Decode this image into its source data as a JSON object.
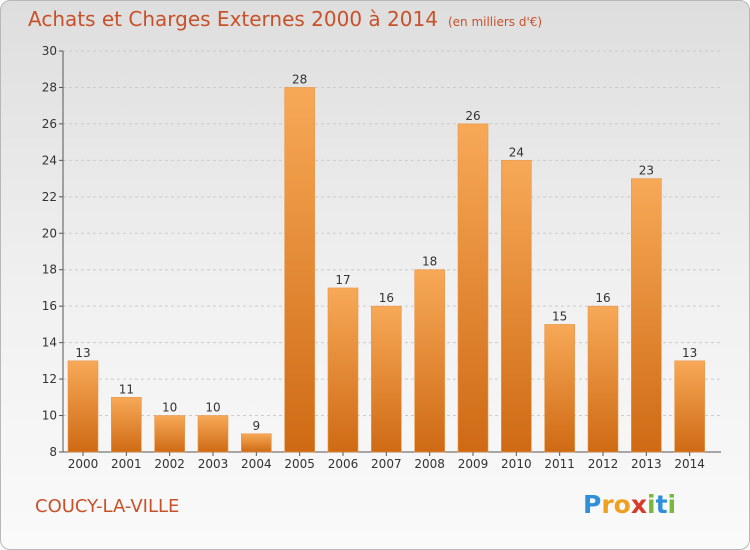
{
  "title": {
    "main": "Achats et Charges Externes 2000 à 2014",
    "unit": "(en milliers d'€)"
  },
  "location": "COUCY-LA-VILLE",
  "logo": {
    "text": "Proxiti",
    "letters": [
      {
        "ch": "P",
        "color": "#2f8fd8"
      },
      {
        "ch": "r",
        "color": "#f0a020"
      },
      {
        "ch": "o",
        "color": "#f0a020"
      },
      {
        "ch": "x",
        "color": "#d83a2a"
      },
      {
        "ch": "i",
        "color": "#7ab83a"
      },
      {
        "ch": "t",
        "color": "#2f8fd8"
      },
      {
        "ch": "i",
        "color": "#7ab83a"
      }
    ]
  },
  "colors": {
    "title": "#c8512a",
    "bar_light": "#f7a957",
    "bar_dark": "#cf6a14",
    "axis_text": "#333333",
    "grid": "#cccccc"
  },
  "chart_data": {
    "type": "bar",
    "categories": [
      "2000",
      "2001",
      "2002",
      "2003",
      "2004",
      "2005",
      "2006",
      "2007",
      "2008",
      "2009",
      "2010",
      "2011",
      "2012",
      "2013",
      "2014"
    ],
    "values": [
      13,
      11,
      10,
      10,
      9,
      28,
      17,
      16,
      18,
      26,
      24,
      15,
      16,
      23,
      13
    ],
    "ylim": [
      8,
      30
    ],
    "yticks": [
      8,
      10,
      12,
      14,
      16,
      18,
      20,
      22,
      24,
      26,
      28,
      30
    ],
    "grid": "horizontal-dashed",
    "legend": "none"
  }
}
